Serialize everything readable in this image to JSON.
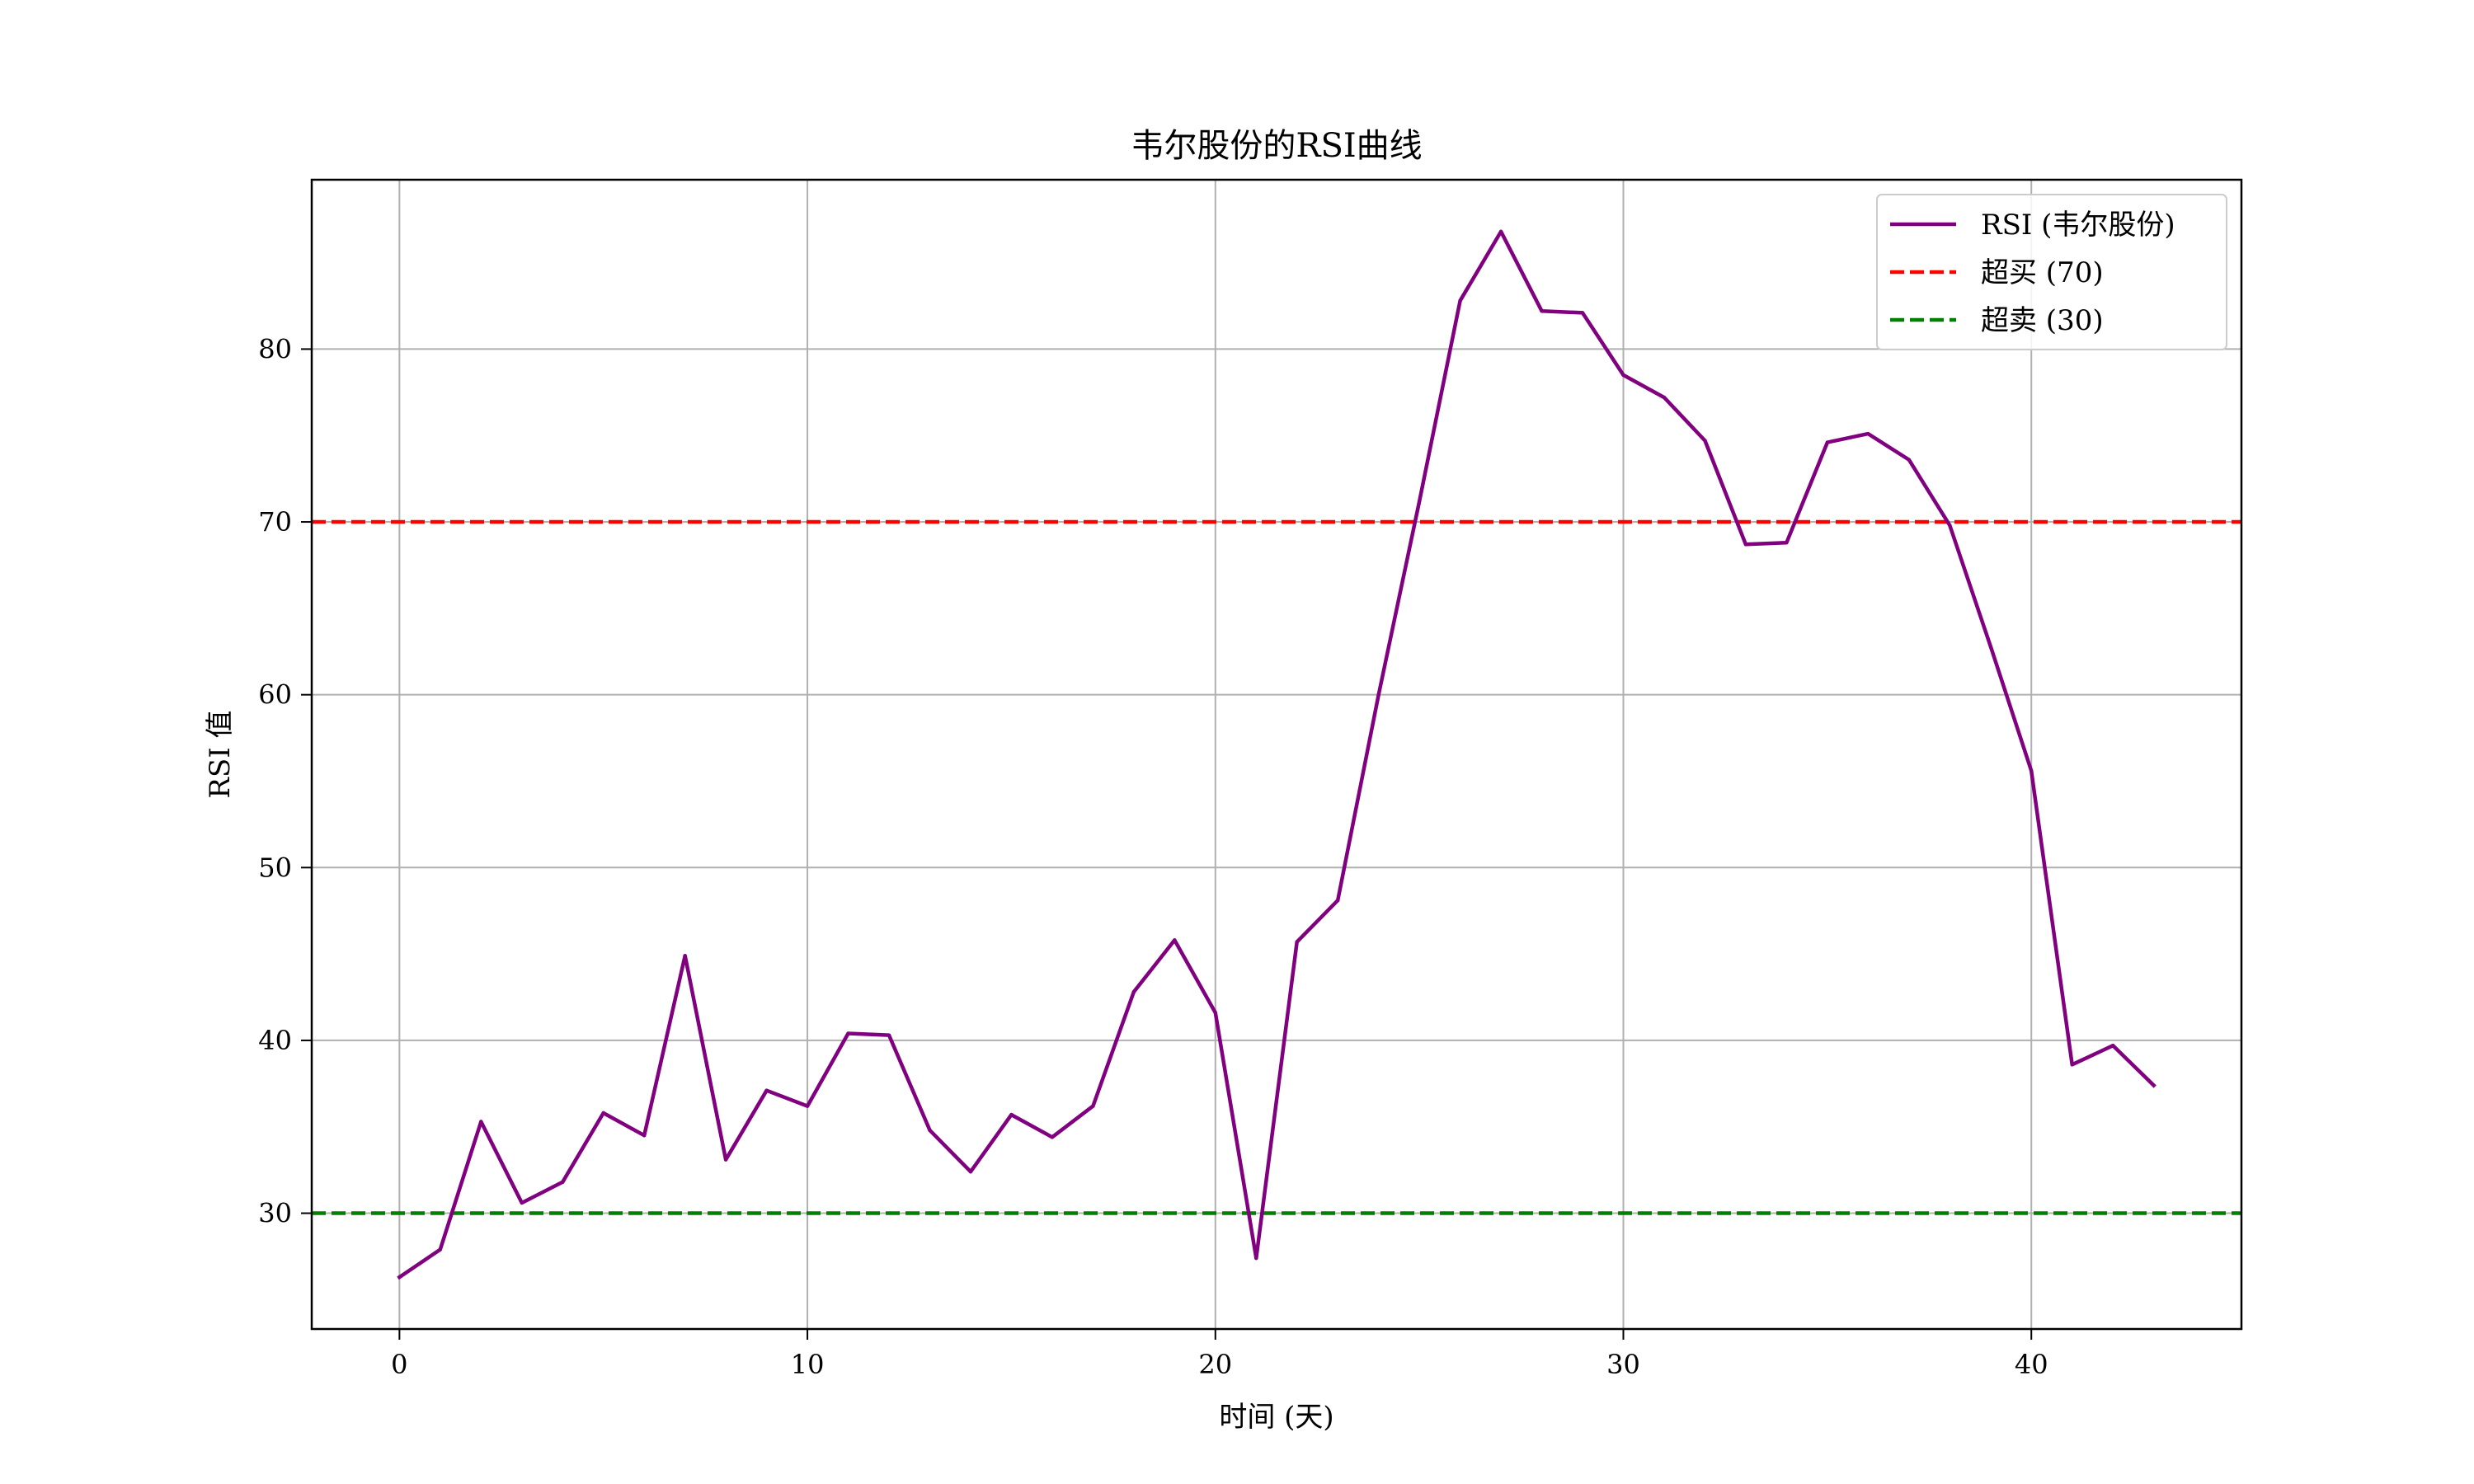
{
  "chart_data": {
    "type": "line",
    "title": "韦尔股份的RSI曲线",
    "xlabel": "时间 (天)",
    "ylabel": "RSI 值",
    "xlim": [
      -2.15,
      45.15
    ],
    "ylim": [
      23.3,
      89.8
    ],
    "xticks": [
      0,
      10,
      20,
      30,
      40
    ],
    "yticks": [
      30,
      40,
      50,
      60,
      70,
      80
    ],
    "grid": true,
    "legend_position": "top-right",
    "x": [
      0,
      1,
      2,
      3,
      4,
      5,
      6,
      7,
      8,
      9,
      10,
      11,
      12,
      13,
      14,
      15,
      16,
      17,
      18,
      19,
      20,
      21,
      22,
      23,
      24,
      25,
      26,
      27,
      28,
      29,
      30,
      31,
      32,
      33,
      34,
      35,
      36,
      37,
      38,
      39,
      40,
      41,
      42,
      43
    ],
    "series": [
      {
        "name": "RSI (韦尔股份)",
        "color": "#800080",
        "style": "solid",
        "values": [
          26.3,
          27.9,
          35.3,
          30.6,
          31.8,
          35.8,
          34.5,
          44.9,
          33.1,
          37.1,
          36.2,
          40.4,
          40.3,
          34.8,
          32.4,
          35.7,
          34.4,
          36.2,
          42.8,
          45.8,
          41.6,
          27.4,
          45.7,
          48.1,
          60.0,
          71.2,
          82.8,
          86.8,
          82.2,
          82.1,
          78.5,
          77.2,
          74.7,
          68.7,
          68.8,
          74.6,
          75.1,
          73.6,
          69.8,
          62.8,
          55.6,
          38.6,
          39.7,
          37.4
        ]
      },
      {
        "name": "超买 (70)",
        "color": "#ff0000",
        "style": "dashed",
        "constant": 70
      },
      {
        "name": "超卖 (30)",
        "color": "#008000",
        "style": "dashed",
        "constant": 30
      }
    ]
  }
}
